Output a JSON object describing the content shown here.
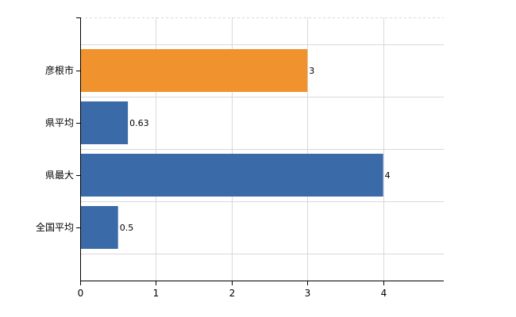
{
  "chart_data": {
    "type": "bar",
    "orientation": "horizontal",
    "categories": [
      "彦根市",
      "県平均",
      "県最大",
      "全国平均"
    ],
    "values": [
      3,
      0.63,
      4,
      0.5
    ],
    "data_labels": [
      "3",
      "0.63",
      "4",
      "0.5"
    ],
    "bar_colors": [
      "#f0922e",
      "#3b6aa8",
      "#3b6aa8",
      "#3b6aa8"
    ],
    "x_ticks": [
      0,
      1,
      2,
      3,
      4
    ],
    "xlim": [
      0,
      4.8
    ],
    "grid": true,
    "title": "",
    "xlabel": "",
    "ylabel": ""
  }
}
